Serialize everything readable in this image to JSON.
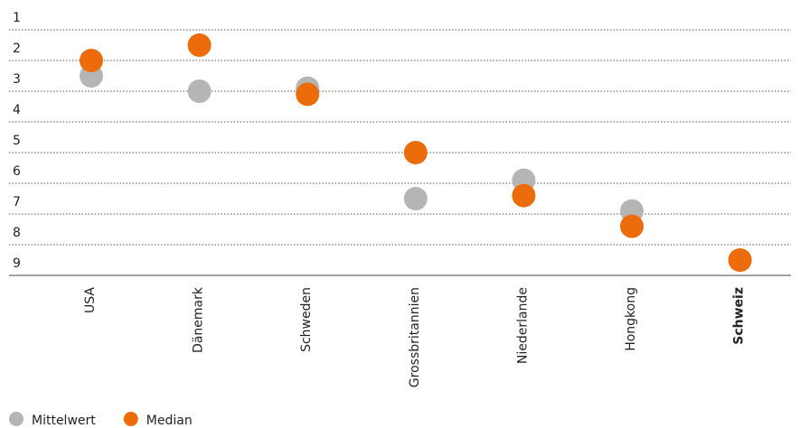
{
  "chart_data": {
    "type": "dot",
    "categories": [
      "USA",
      "Dänemark",
      "Schweden",
      "Grossbritannien",
      "Niederlande",
      "Hongkong",
      "Schweiz"
    ],
    "highlight_category": 6,
    "series": [
      {
        "name": "Mittelwert",
        "color": "#b5b5b5",
        "values": [
          2.5,
          3.0,
          2.9,
          6.5,
          5.9,
          6.9,
          8.5
        ]
      },
      {
        "name": "Median",
        "color": "#ec6c0b",
        "values": [
          2.0,
          1.5,
          3.1,
          5.0,
          6.4,
          7.4,
          8.5
        ]
      }
    ],
    "ylim": [
      9,
      0
    ],
    "yticks": [
      1,
      2,
      3,
      4,
      5,
      6,
      7,
      8,
      9
    ],
    "grid": true
  }
}
